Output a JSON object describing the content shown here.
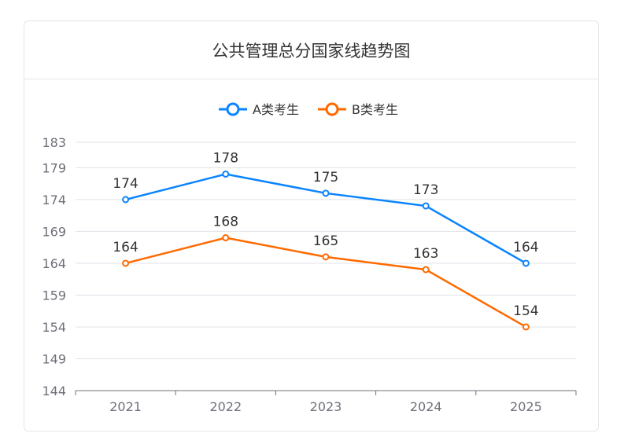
{
  "title": "公共管理总分国家线趋势图",
  "chart_data": {
    "type": "line",
    "title": "公共管理总分国家线趋势图",
    "categories": [
      "2021",
      "2022",
      "2023",
      "2024",
      "2025"
    ],
    "series": [
      {
        "name": "A类考生",
        "values": [
          174,
          178,
          175,
          173,
          164
        ],
        "color": "#0a84ff"
      },
      {
        "name": "B类考生",
        "values": [
          164,
          168,
          165,
          163,
          154
        ],
        "color": "#ff6a00"
      }
    ],
    "y_ticks": [
      144,
      149,
      154,
      159,
      164,
      169,
      174,
      179,
      183
    ],
    "ylim": [
      144,
      183
    ],
    "grid": true,
    "legend_position": "top-center",
    "data_labels": true
  }
}
